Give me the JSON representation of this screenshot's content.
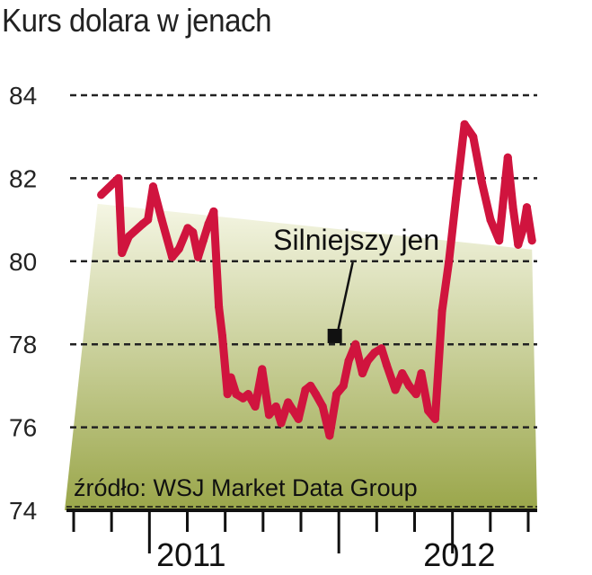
{
  "chart_data": {
    "type": "line",
    "title": "Kurs dolara w jenach",
    "ylim": [
      74,
      84
    ],
    "yticks": [
      "74",
      "76",
      "78",
      "80",
      "82",
      "84"
    ],
    "year_labels": [
      {
        "label": "2011",
        "x": 7.0
      },
      {
        "label": "2012",
        "x": 22.5
      }
    ],
    "xlim": [
      0,
      27
    ],
    "grid": true,
    "line_color": "#d0143e",
    "area_gradient": [
      "#f5f6e4",
      "#9aa64a"
    ],
    "annotation": {
      "text": "Silniejszy jen",
      "x": 15.3,
      "y": 78.2
    },
    "source": "źródło: WSJ Market Data Group",
    "series": [
      {
        "x": [
          1.8,
          2.8,
          3.0,
          3.4,
          4.2,
          4.5,
          4.8,
          5.3,
          5.9,
          6.3,
          6.8,
          7.1,
          7.4,
          7.7,
          8.0,
          8.3,
          8.6,
          8.8,
          9.1,
          9.3,
          9.6,
          10.0,
          10.3,
          10.7,
          11.1,
          11.5,
          11.9,
          12.2,
          12.6,
          12.9,
          13.2,
          13.6,
          13.9,
          14.2,
          14.6,
          15.0,
          15.4,
          15.8,
          16.1,
          16.5,
          16.9,
          17.2,
          17.6,
          18.0,
          18.3,
          18.8,
          19.2,
          19.6,
          20.0,
          20.3,
          20.7,
          21.1,
          21.5,
          21.9,
          22.3,
          22.8,
          23.3,
          23.8,
          24.3,
          24.8,
          25.3,
          25.6,
          25.9,
          26.2,
          26.4,
          26.7
        ],
        "y": [
          81.6,
          82.0,
          80.2,
          80.6,
          80.9,
          81.0,
          81.8,
          81.0,
          80.1,
          80.3,
          80.8,
          80.7,
          80.1,
          80.5,
          80.9,
          81.2,
          78.9,
          78.2,
          76.8,
          77.2,
          76.8,
          76.7,
          76.8,
          76.5,
          77.4,
          76.3,
          76.5,
          76.1,
          76.6,
          76.4,
          76.2,
          76.9,
          77.0,
          76.8,
          76.5,
          75.8,
          76.8,
          77.0,
          77.6,
          78.0,
          77.3,
          77.6,
          77.8,
          77.9,
          77.5,
          76.9,
          77.3,
          77.0,
          76.8,
          77.3,
          76.4,
          76.2,
          78.8,
          80.0,
          81.5,
          83.3,
          83.0,
          81.9,
          81.0,
          80.5,
          82.5,
          81.3,
          80.4,
          80.8,
          81.3,
          80.5
        ]
      }
    ]
  }
}
